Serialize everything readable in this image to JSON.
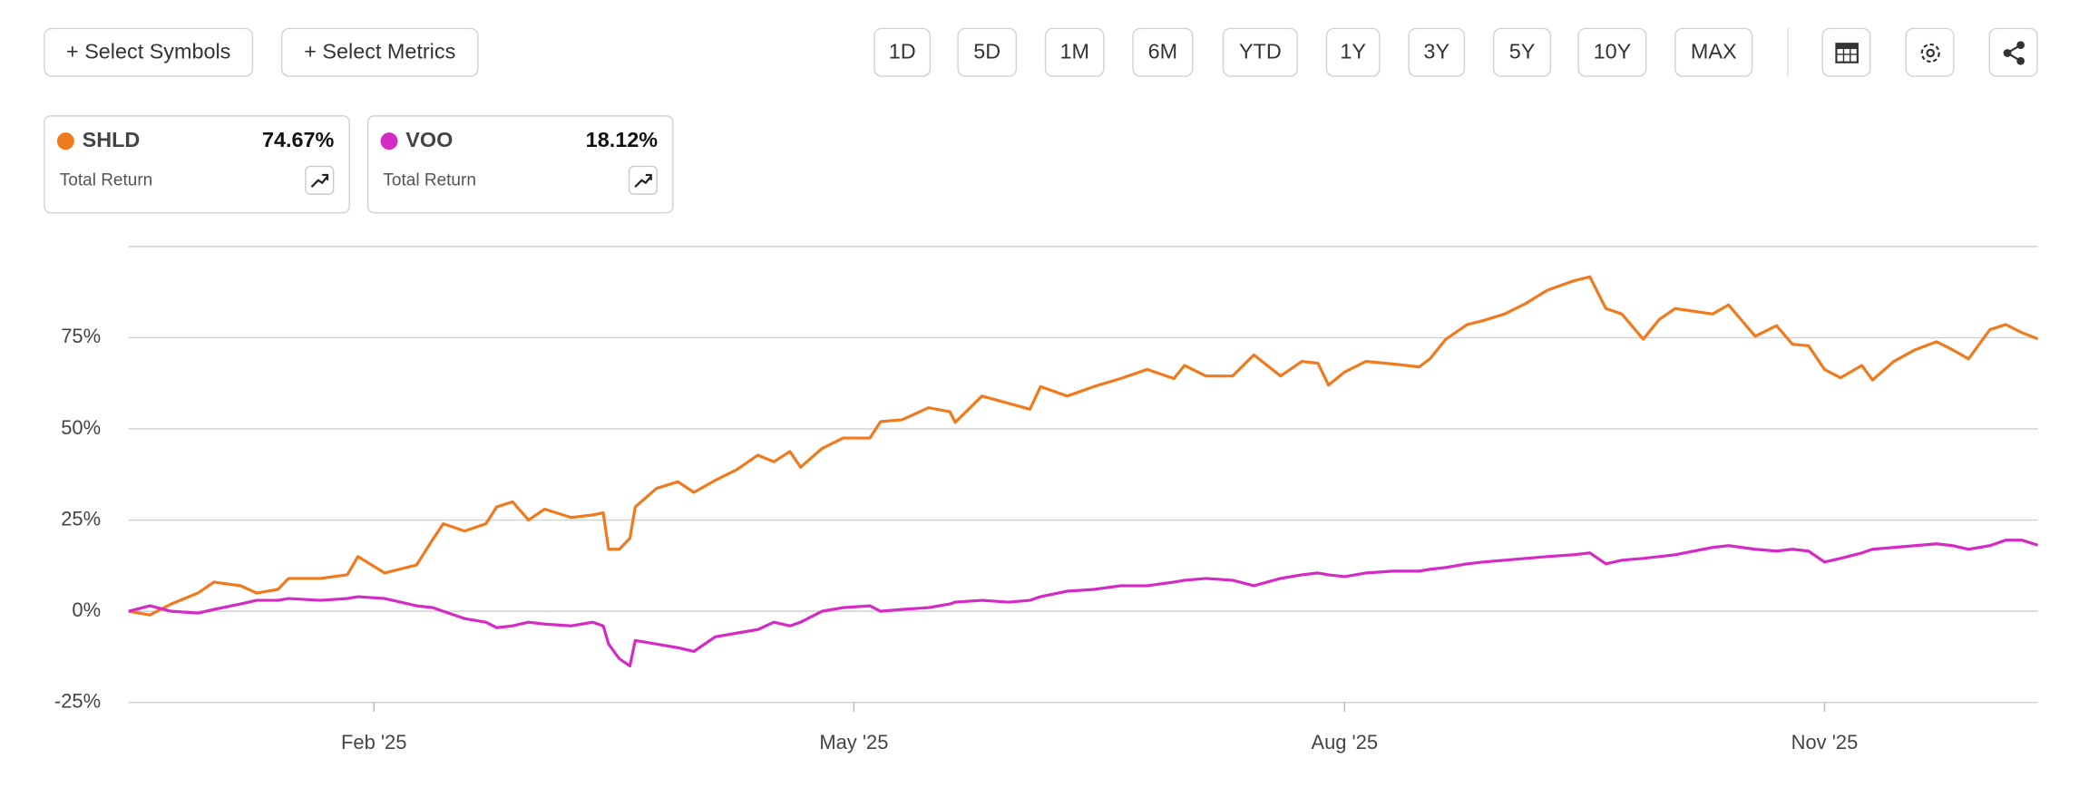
{
  "toolbar": {
    "symbols_button": "+ Select Symbols",
    "metrics_button": "+ Select Metrics",
    "ranges": [
      "1D",
      "5D",
      "1M",
      "6M",
      "YTD",
      "1Y",
      "3Y",
      "5Y",
      "10Y",
      "MAX"
    ]
  },
  "chart_data": {
    "type": "line",
    "x": [
      0,
      4,
      8,
      13,
      16,
      21,
      24,
      28,
      30,
      36,
      41,
      43,
      48,
      54,
      57,
      59,
      63,
      67,
      69,
      72,
      75,
      78,
      83,
      87,
      89,
      90,
      92,
      94,
      95,
      99,
      103,
      106,
      110,
      114,
      118,
      121,
      124,
      126,
      130,
      134,
      139,
      141,
      145,
      150,
      154,
      155,
      160,
      165,
      169,
      171,
      176,
      181,
      186,
      191,
      196,
      198,
      202,
      207,
      211,
      216,
      220,
      223,
      225,
      228,
      232,
      237,
      242,
      244,
      247,
      251,
      254,
      258,
      262,
      266,
      271,
      274,
      277,
      280,
      284,
      287,
      290,
      297,
      300,
      305,
      309,
      312,
      315,
      318,
      321,
      325,
      327,
      331,
      335,
      339,
      342,
      345,
      349,
      352,
      355,
      358
    ],
    "series": [
      {
        "name": "SHLD",
        "color": "#f07a1e",
        "metric": "Total Return",
        "total_return": {
          "value": 74.67,
          "label": "74.67%"
        },
        "values": [
          0,
          -1,
          2,
          5,
          8,
          7,
          5,
          6,
          9,
          9,
          10,
          15,
          10.5,
          12.7,
          19.6,
          24,
          22,
          24,
          28.6,
          30,
          25,
          28,
          25.7,
          26.4,
          27,
          17,
          17,
          20,
          28.6,
          33.7,
          35.5,
          32.6,
          35.9,
          38.8,
          42.8,
          41,
          43.8,
          39.5,
          44.6,
          47.5,
          47.5,
          52,
          52.5,
          55.8,
          54.7,
          51.8,
          59,
          57,
          55.4,
          61.6,
          59,
          61.6,
          63.8,
          66.3,
          63.8,
          67.4,
          64.5,
          64.5,
          70.3,
          64.5,
          68.5,
          68,
          62,
          65.6,
          68.5,
          67.8,
          67,
          69.2,
          74.6,
          78.6,
          79.7,
          81.5,
          84.4,
          88,
          90.6,
          91.7,
          83,
          81.5,
          74.6,
          80,
          83,
          81.5,
          84,
          75.4,
          78.3,
          73.2,
          72.8,
          66.3,
          64,
          67.4,
          63.4,
          68.5,
          71.7,
          73.9,
          71.7,
          69.2,
          77.2,
          78.6,
          76.4,
          74.67
        ]
      },
      {
        "name": "VOO",
        "color": "#d42bc4",
        "metric": "Total Return",
        "total_return": {
          "value": 18.12,
          "label": "18.12%"
        },
        "values": [
          0,
          1.5,
          0,
          -0.5,
          0.5,
          2,
          3,
          3,
          3.5,
          3,
          3.5,
          4,
          3.5,
          1.5,
          1,
          0,
          -2,
          -3,
          -4.5,
          -4,
          -3,
          -3.5,
          -4,
          -3,
          -4,
          -9,
          -13,
          -15,
          -8,
          -9,
          -10,
          -11,
          -7,
          -6,
          -5,
          -3,
          -4,
          -3,
          0,
          1,
          1.5,
          0,
          0.5,
          1,
          2,
          2.5,
          3,
          2.5,
          3,
          4,
          5.5,
          6,
          7,
          7,
          8,
          8.5,
          9,
          8.5,
          7,
          9,
          10,
          10.5,
          10,
          9.5,
          10.5,
          11,
          11,
          11.5,
          12,
          13,
          13.5,
          14,
          14.5,
          15,
          15.5,
          16,
          13,
          14,
          14.5,
          15,
          15.5,
          17.5,
          18,
          17,
          16.5,
          17,
          16.5,
          13.5,
          14.5,
          16,
          17,
          17.5,
          18,
          18.5,
          18,
          17,
          18,
          19.5,
          19.5,
          18.12
        ]
      }
    ],
    "xlim": [
      0,
      358
    ],
    "xticks": [
      {
        "value": 46,
        "label": "Feb '25"
      },
      {
        "value": 136,
        "label": "May '25"
      },
      {
        "value": 228,
        "label": "Aug '25"
      },
      {
        "value": 318,
        "label": "Nov '25"
      }
    ],
    "ylim": [
      -25,
      100
    ],
    "yticks": [
      {
        "value": -25,
        "label": "-25%"
      },
      {
        "value": 0,
        "label": "0%"
      },
      {
        "value": 25,
        "label": "25%"
      },
      {
        "value": 50,
        "label": "50%"
      },
      {
        "value": 75,
        "label": "75%"
      }
    ],
    "grid": true
  }
}
